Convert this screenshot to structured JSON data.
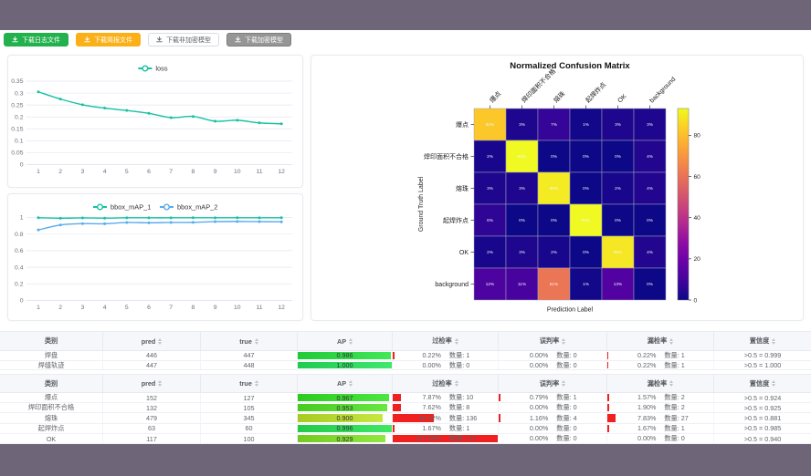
{
  "colors": {
    "bar_purple": "#6e6578",
    "teal": "#16c2a3",
    "blue": "#58abee",
    "red_bar": "#f12020",
    "axis_label": "#6e7079",
    "grid_line": "#e4e7ef"
  },
  "toolbar": {
    "buttons": [
      {
        "id": "download-log-file",
        "label": "下载日志文件",
        "style": "green"
      },
      {
        "id": "download-report-file",
        "label": "下载简报文件",
        "style": "orange"
      },
      {
        "id": "download-plain-model",
        "label": "下载非加密模型",
        "style": "white"
      },
      {
        "id": "download-encrypted-model",
        "label": "下载加密模型",
        "style": "gray"
      }
    ]
  },
  "chart_data": [
    {
      "id": "loss-chart",
      "type": "line",
      "legend_position": "top",
      "x": [
        1,
        2,
        3,
        4,
        5,
        6,
        7,
        8,
        9,
        10,
        11,
        12
      ],
      "series": [
        {
          "name": "loss",
          "color": "#16c2a3",
          "values": [
            0.305,
            0.275,
            0.251,
            0.237,
            0.227,
            0.215,
            0.197,
            0.202,
            0.182,
            0.186,
            0.175,
            0.171
          ]
        }
      ],
      "ylim": [
        0,
        0.35
      ],
      "yticks": [
        0,
        0.05,
        0.1,
        0.15,
        0.2,
        0.25,
        0.3,
        0.35
      ],
      "ytick_labels": [
        "0",
        "0.05",
        "0.1",
        "0.15",
        "0.2",
        "0.25",
        "0.3",
        "0.35"
      ],
      "grid": true
    },
    {
      "id": "map-chart",
      "type": "line",
      "legend_position": "top",
      "x": [
        1,
        2,
        3,
        4,
        5,
        6,
        7,
        8,
        9,
        10,
        11,
        12
      ],
      "series": [
        {
          "name": "bbox_mAP_1",
          "color": "#16c2a3",
          "values": [
            0.997,
            0.991,
            0.995,
            0.992,
            0.996,
            0.996,
            0.996,
            0.997,
            0.996,
            0.997,
            0.996,
            0.997
          ]
        },
        {
          "name": "bbox_mAP_2",
          "color": "#58abee",
          "values": [
            0.85,
            0.91,
            0.926,
            0.924,
            0.94,
            0.936,
            0.94,
            0.941,
            0.95,
            0.952,
            0.95,
            0.948
          ]
        }
      ],
      "ylim": [
        0,
        1
      ],
      "yticks": [
        0,
        0.2,
        0.4,
        0.6,
        0.8,
        1
      ],
      "ytick_labels": [
        "0",
        "0.2",
        "0.4",
        "0.6",
        "0.8",
        "1"
      ],
      "grid": true
    },
    {
      "id": "confusion-matrix",
      "type": "heatmap",
      "title": "Normalized Confusion Matrix",
      "xlabel": "Prediction Label",
      "ylabel": "Ground Truth Label",
      "categories": [
        "爆点",
        "焊印面积不合格",
        "熔珠",
        "起焊炸点",
        "OK",
        "background"
      ],
      "values": [
        [
          82,
          3,
          7,
          1,
          3,
          3
        ],
        [
          2,
          93,
          0,
          0,
          0,
          4
        ],
        [
          3,
          3,
          90,
          0,
          2,
          4
        ],
        [
          6,
          0,
          0,
          93,
          0,
          0
        ],
        [
          2,
          3,
          2,
          0,
          89,
          4
        ],
        [
          12,
          11,
          61,
          1,
          13,
          0
        ]
      ],
      "value_suffix": "%",
      "vmin": 0,
      "vmax": 93,
      "colormap": "plasma",
      "colorbar_ticks": [
        0,
        20,
        40,
        60,
        80
      ]
    }
  ],
  "tables": [
    {
      "id": "summary-table",
      "headers": [
        {
          "label": "类别",
          "sortable": false
        },
        {
          "label": "pred",
          "sortable": true
        },
        {
          "label": "true",
          "sortable": true
        },
        {
          "label": "AP",
          "sortable": true
        },
        {
          "label": "过检率",
          "sortable": true
        },
        {
          "label": "误判率",
          "sortable": true
        },
        {
          "label": "漏检率",
          "sortable": true
        },
        {
          "label": "置信度",
          "sortable": true
        }
      ],
      "rows": [
        {
          "class": "焊盘",
          "pred": "446",
          "true": "447",
          "ap": {
            "text": "0.986",
            "value": 0.986
          },
          "over": {
            "pct": "0.22%",
            "count": "数量: 1",
            "bar": 0.22
          },
          "mis": {
            "pct": "0.00%",
            "count": "数量: 0",
            "bar": 0
          },
          "miss": {
            "pct": "0.22%",
            "count": "数量: 1",
            "bar": 0.22
          },
          "conf": ">0.5 = 0.999"
        },
        {
          "class": "焊缝轨迹",
          "pred": "447",
          "true": "448",
          "ap": {
            "text": "1.000",
            "value": 1.0
          },
          "over": {
            "pct": "0.00%",
            "count": "数量: 0",
            "bar": 0
          },
          "mis": {
            "pct": "0.00%",
            "count": "数量: 0",
            "bar": 0
          },
          "miss": {
            "pct": "0.22%",
            "count": "数量: 1",
            "bar": 0.22
          },
          "conf": ">0.5 = 1.000"
        }
      ]
    },
    {
      "id": "defect-table",
      "headers": [
        {
          "label": "类别",
          "sortable": false
        },
        {
          "label": "pred",
          "sortable": true
        },
        {
          "label": "true",
          "sortable": true
        },
        {
          "label": "AP",
          "sortable": true
        },
        {
          "label": "过检率",
          "sortable": true
        },
        {
          "label": "误判率",
          "sortable": true
        },
        {
          "label": "漏检率",
          "sortable": true
        },
        {
          "label": "置信度",
          "sortable": true
        }
      ],
      "rows": [
        {
          "class": "爆点",
          "pred": "152",
          "true": "127",
          "ap": {
            "text": "0.967",
            "value": 0.967
          },
          "over": {
            "pct": "7.87%",
            "count": "数量: 10",
            "bar": 7.87
          },
          "mis": {
            "pct": "0.79%",
            "count": "数量: 1",
            "bar": 0.79
          },
          "miss": {
            "pct": "1.57%",
            "count": "数量: 2",
            "bar": 1.57
          },
          "conf": ">0.5 = 0.924"
        },
        {
          "class": "焊印面积不合格",
          "pred": "132",
          "true": "105",
          "ap": {
            "text": "0.953",
            "value": 0.953
          },
          "over": {
            "pct": "7.62%",
            "count": "数量: 8",
            "bar": 7.62
          },
          "mis": {
            "pct": "0.00%",
            "count": "数量: 0",
            "bar": 0
          },
          "miss": {
            "pct": "1.90%",
            "count": "数量: 2",
            "bar": 1.9
          },
          "conf": ">0.5 = 0.925"
        },
        {
          "class": "熔珠",
          "pred": "479",
          "true": "345",
          "ap": {
            "text": "0.900",
            "value": 0.9
          },
          "over": {
            "pct": "39.42%",
            "count": "数量: 136",
            "bar": 39.42
          },
          "mis": {
            "pct": "1.16%",
            "count": "数量: 4",
            "bar": 1.16
          },
          "miss": {
            "pct": "7.83%",
            "count": "数量: 27",
            "bar": 7.83
          },
          "conf": ">0.5 = 0.881"
        },
        {
          "class": "起焊炸点",
          "pred": "63",
          "true": "60",
          "ap": {
            "text": "0.996",
            "value": 0.996
          },
          "over": {
            "pct": "1.67%",
            "count": "数量: 1",
            "bar": 1.67
          },
          "mis": {
            "pct": "0.00%",
            "count": "数量: 0",
            "bar": 0
          },
          "miss": {
            "pct": "1.67%",
            "count": "数量: 1",
            "bar": 1.67
          },
          "conf": ">0.5 = 0.985"
        },
        {
          "class": "OK",
          "pred": "117",
          "true": "100",
          "ap": {
            "text": "0.929",
            "value": 0.929
          },
          "over": {
            "pct": "117.00%",
            "count": "数量: 117",
            "bar": 117
          },
          "mis": {
            "pct": "0.00%",
            "count": "数量: 0",
            "bar": 0
          },
          "miss": {
            "pct": "0.00%",
            "count": "数量: 0",
            "bar": 0
          },
          "conf": ">0.5 = 0.940"
        }
      ]
    }
  ]
}
